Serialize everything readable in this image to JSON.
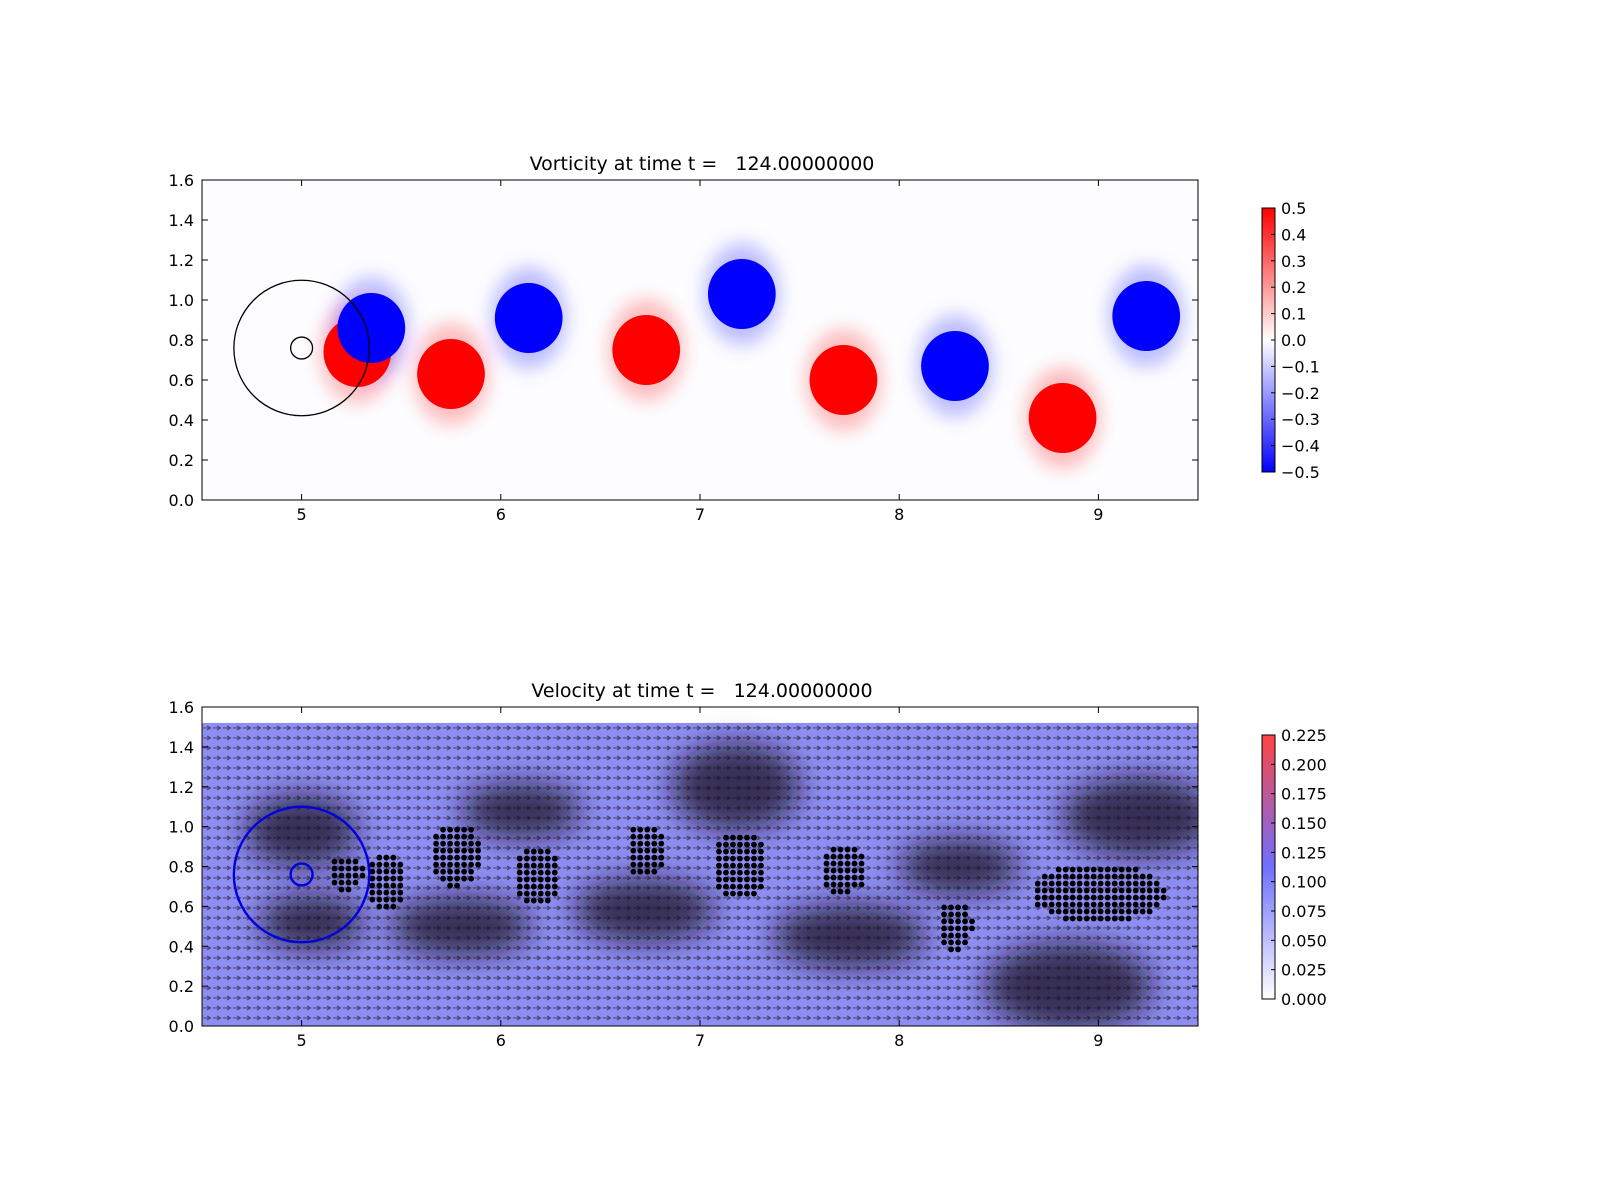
{
  "chart_data": [
    {
      "type": "heatmap",
      "title": "Vorticity at time t =   124.00000000",
      "xlabel": "",
      "ylabel": "",
      "xlim": [
        4.5,
        9.5
      ],
      "ylim": [
        0.0,
        1.6
      ],
      "x_ticks": [
        "5",
        "6",
        "7",
        "8",
        "9"
      ],
      "y_ticks": [
        "0.0",
        "0.2",
        "0.4",
        "0.6",
        "0.8",
        "1.0",
        "1.2",
        "1.4",
        "1.6"
      ],
      "colormap": {
        "low": "#0000ff",
        "mid": "#ffffff",
        "high": "#ff0000"
      },
      "colorbar": {
        "range": [
          -0.5,
          0.5
        ],
        "ticks": [
          "0.5",
          "0.4",
          "0.3",
          "0.2",
          "0.1",
          "0.0",
          "−0.1",
          "−0.2",
          "−0.3",
          "−0.4",
          "−0.5"
        ]
      },
      "vortices": [
        {
          "x": 5.28,
          "y": 0.74,
          "value": 0.5
        },
        {
          "x": 5.35,
          "y": 0.86,
          "value": -0.5
        },
        {
          "x": 5.75,
          "y": 0.63,
          "value": 0.5
        },
        {
          "x": 6.14,
          "y": 0.91,
          "value": -0.5
        },
        {
          "x": 6.73,
          "y": 0.75,
          "value": 0.5
        },
        {
          "x": 7.21,
          "y": 1.03,
          "value": -0.5
        },
        {
          "x": 7.72,
          "y": 0.6,
          "value": 0.5
        },
        {
          "x": 8.28,
          "y": 0.67,
          "value": -0.5
        },
        {
          "x": 8.82,
          "y": 0.41,
          "value": 0.5
        },
        {
          "x": 9.24,
          "y": 0.92,
          "value": -0.5
        }
      ],
      "circles": [
        {
          "x": 5.0,
          "y": 0.76,
          "r": 0.34,
          "color": "#000000"
        },
        {
          "x": 5.0,
          "y": 0.76,
          "r": 0.055,
          "color": "#000000"
        }
      ]
    },
    {
      "type": "heatmap",
      "title": "Velocity at time t =   124.00000000",
      "xlabel": "",
      "ylabel": "",
      "xlim": [
        4.5,
        9.5
      ],
      "ylim": [
        0.0,
        1.6
      ],
      "x_ticks": [
        "5",
        "6",
        "7",
        "8",
        "9"
      ],
      "y_ticks": [
        "0.0",
        "0.2",
        "0.4",
        "0.6",
        "0.8",
        "1.0",
        "1.2",
        "1.4",
        "1.6"
      ],
      "field_top": 1.52,
      "colormap": {
        "low": "#ffffff",
        "mid": "#6f6fff",
        "high": "#ff4444"
      },
      "colorbar": {
        "range": [
          0.0,
          0.225
        ],
        "ticks": [
          "0.225",
          "0.200",
          "0.175",
          "0.150",
          "0.125",
          "0.100",
          "0.075",
          "0.050",
          "0.025",
          "0.000"
        ]
      },
      "dark_regions": [
        {
          "x": 5.0,
          "y": 0.98,
          "rx": 0.28,
          "ry": 0.18
        },
        {
          "x": 5.05,
          "y": 0.52,
          "rx": 0.26,
          "ry": 0.14
        },
        {
          "x": 5.8,
          "y": 0.5,
          "rx": 0.35,
          "ry": 0.15
        },
        {
          "x": 6.1,
          "y": 1.08,
          "rx": 0.3,
          "ry": 0.14
        },
        {
          "x": 6.72,
          "y": 0.58,
          "rx": 0.35,
          "ry": 0.16
        },
        {
          "x": 7.18,
          "y": 1.2,
          "rx": 0.32,
          "ry": 0.22
        },
        {
          "x": 7.75,
          "y": 0.45,
          "rx": 0.38,
          "ry": 0.16
        },
        {
          "x": 8.3,
          "y": 0.8,
          "rx": 0.3,
          "ry": 0.14
        },
        {
          "x": 8.85,
          "y": 0.2,
          "rx": 0.42,
          "ry": 0.22
        },
        {
          "x": 9.2,
          "y": 1.05,
          "rx": 0.38,
          "ry": 0.2
        }
      ],
      "dot_clusters": [
        {
          "x": 5.22,
          "y": 0.77,
          "rx": 0.09,
          "ry": 0.09
        },
        {
          "x": 5.42,
          "y": 0.73,
          "rx": 0.1,
          "ry": 0.15
        },
        {
          "x": 5.77,
          "y": 0.86,
          "rx": 0.13,
          "ry": 0.16
        },
        {
          "x": 6.18,
          "y": 0.76,
          "rx": 0.12,
          "ry": 0.15
        },
        {
          "x": 6.73,
          "y": 0.88,
          "rx": 0.1,
          "ry": 0.14
        },
        {
          "x": 7.2,
          "y": 0.81,
          "rx": 0.14,
          "ry": 0.17
        },
        {
          "x": 7.72,
          "y": 0.79,
          "rx": 0.12,
          "ry": 0.13
        },
        {
          "x": 8.28,
          "y": 0.5,
          "rx": 0.09,
          "ry": 0.13
        },
        {
          "x": 9.0,
          "y": 0.67,
          "rx": 0.34,
          "ry": 0.15
        }
      ],
      "circles": [
        {
          "x": 5.0,
          "y": 0.76,
          "r": 0.34,
          "color": "#0000dd"
        },
        {
          "x": 5.0,
          "y": 0.76,
          "r": 0.055,
          "color": "#0000dd"
        }
      ]
    }
  ]
}
